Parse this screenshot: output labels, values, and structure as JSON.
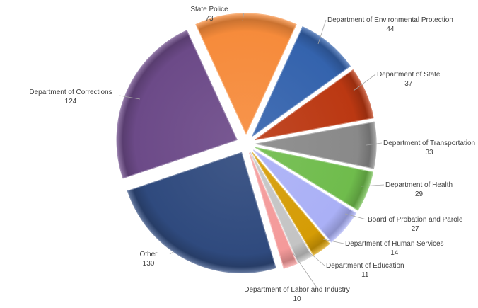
{
  "chart_data": {
    "type": "pie",
    "start_category": "State Police",
    "direction": "clockwise",
    "exploded": true,
    "style": "3d-bevel",
    "slices": [
      {
        "name": "State Police",
        "value": 73,
        "color": "#f68b3b"
      },
      {
        "name": "Department of Environmental Protection",
        "value": 44,
        "color": "#3463ad"
      },
      {
        "name": "Department of State",
        "value": 37,
        "color": "#bb3812"
      },
      {
        "name": "Department of Transportation",
        "value": 33,
        "color": "#898989"
      },
      {
        "name": "Department of Health",
        "value": 29,
        "color": "#6fbc4c"
      },
      {
        "name": "Board of Probation and Parole",
        "value": 27,
        "color": "#aab0f6"
      },
      {
        "name": "Department of Human Services",
        "value": 14,
        "color": "#d59c05"
      },
      {
        "name": "Department of Education",
        "value": 11,
        "color": "#c4c4c4"
      },
      {
        "name": "Department of Labor and Industry",
        "value": 10,
        "color": "#f49a9a"
      },
      {
        "name": "Other",
        "value": 130,
        "color": "#2f4a7e"
      },
      {
        "name": "Department of Corrections",
        "value": 124,
        "color": "#6c4a88"
      }
    ]
  }
}
